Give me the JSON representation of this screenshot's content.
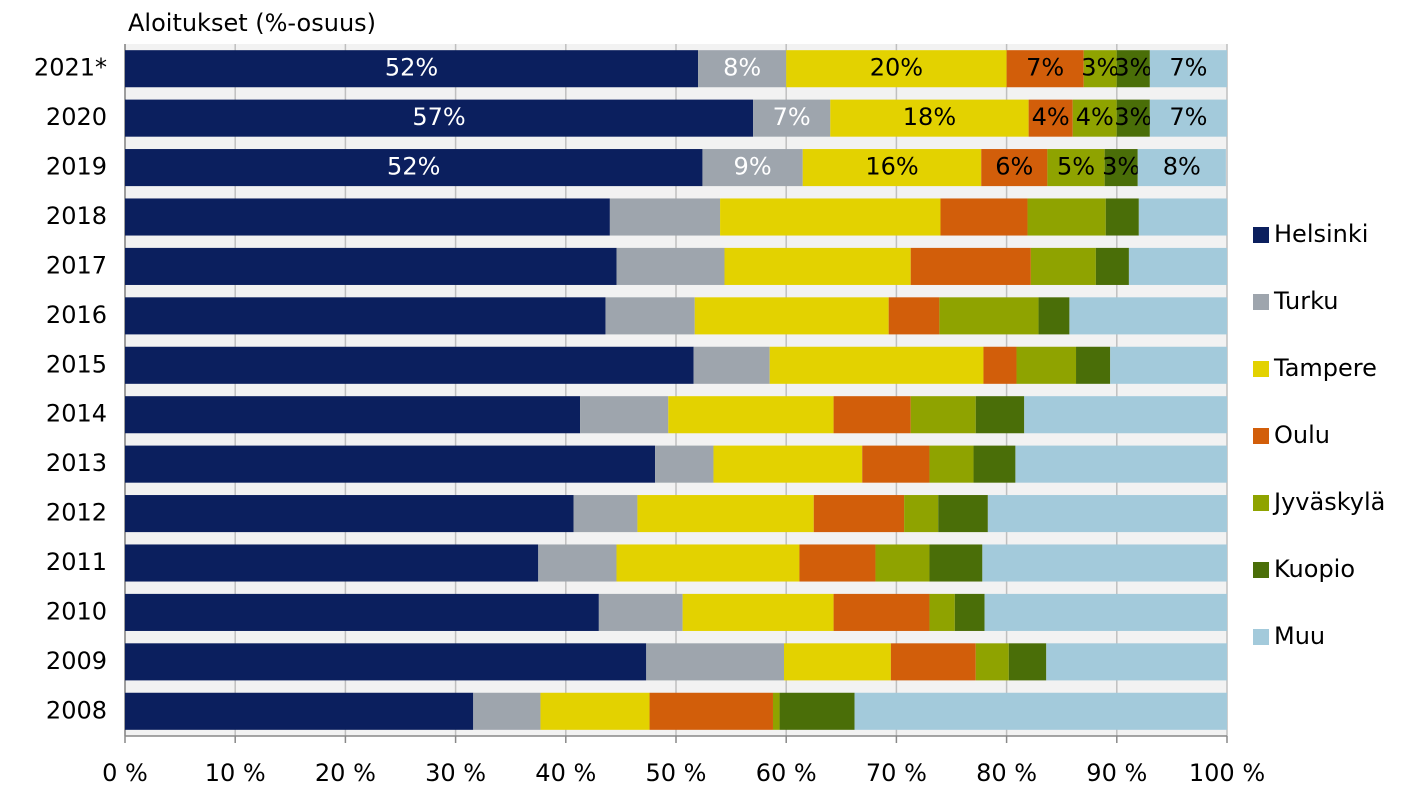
{
  "chart_data": {
    "type": "stacked_bar_horizontal",
    "title": "Aloitukset (%-osuus)",
    "categories": [
      "2021*",
      "2020",
      "2019",
      "2018",
      "2017",
      "2016",
      "2015",
      "2014",
      "2013",
      "2012",
      "2011",
      "2010",
      "2009",
      "2008"
    ],
    "series": [
      {
        "name": "Helsinki",
        "color": "#0b1f5e",
        "values": [
          52,
          57,
          52.4,
          44.0,
          44.6,
          43.6,
          51.6,
          41.3,
          48.1,
          40.7,
          37.5,
          43.0,
          47.3,
          31.6
        ],
        "value_labels": [
          "52%",
          "57%",
          "52%",
          null,
          null,
          null,
          null,
          null,
          null,
          null,
          null,
          null,
          null,
          null
        ]
      },
      {
        "name": "Turku",
        "color": "#9ea5ad",
        "values": [
          8,
          7,
          9.1,
          10.0,
          9.8,
          8.1,
          6.9,
          8.0,
          5.3,
          5.8,
          7.1,
          7.6,
          12.5,
          6.1
        ],
        "value_labels": [
          "8%",
          "7%",
          "9%",
          null,
          null,
          null,
          null,
          null,
          null,
          null,
          null,
          null,
          null,
          null
        ]
      },
      {
        "name": "Tampere",
        "color": "#e3d200",
        "values": [
          20,
          18,
          16.2,
          20.0,
          16.9,
          17.6,
          19.4,
          15.0,
          13.5,
          16.0,
          16.6,
          13.7,
          9.7,
          9.9
        ],
        "value_labels": [
          "20%",
          "18%",
          "16%",
          null,
          null,
          null,
          null,
          null,
          null,
          null,
          null,
          null,
          null,
          null
        ]
      },
      {
        "name": "Oulu",
        "color": "#d25e0a",
        "values": [
          7,
          4,
          6.0,
          7.9,
          10.9,
          4.6,
          3.0,
          7.0,
          6.1,
          8.2,
          6.9,
          8.7,
          7.7,
          11.2
        ],
        "value_labels": [
          "7%",
          "4%",
          "6%",
          null,
          null,
          null,
          null,
          null,
          null,
          null,
          null,
          null,
          null,
          null
        ]
      },
      {
        "name": "Jyväskylä",
        "color": "#8fa300",
        "values": [
          3,
          4,
          5.2,
          7.1,
          5.9,
          9.0,
          5.4,
          5.9,
          4.0,
          3.1,
          4.9,
          2.3,
          3.0,
          0.6
        ],
        "value_labels": [
          "3%",
          "4%",
          "5%",
          null,
          null,
          null,
          null,
          null,
          null,
          null,
          null,
          null,
          null,
          null
        ]
      },
      {
        "name": "Kuopio",
        "color": "#4a6e08",
        "values": [
          3,
          3,
          3.0,
          3.0,
          3.0,
          2.8,
          3.1,
          4.4,
          3.8,
          4.5,
          4.8,
          2.7,
          3.4,
          6.8
        ],
        "value_labels": [
          "3%",
          "3%",
          "3%",
          null,
          null,
          null,
          null,
          null,
          null,
          null,
          null,
          null,
          null,
          null
        ]
      },
      {
        "name": "Muu",
        "color": "#a3cadb",
        "values": [
          7,
          7,
          8.0,
          8.0,
          8.9,
          14.3,
          10.6,
          18.4,
          19.2,
          21.7,
          22.2,
          22.0,
          16.4,
          33.8
        ],
        "value_labels": [
          "7%",
          "7%",
          "8%",
          null,
          null,
          null,
          null,
          null,
          null,
          null,
          null,
          null,
          null,
          null
        ]
      }
    ],
    "xlim": [
      0,
      100
    ],
    "xticks": [
      {
        "value": 0,
        "label": "0 %"
      },
      {
        "value": 10,
        "label": "10 %"
      },
      {
        "value": 20,
        "label": "20 %"
      },
      {
        "value": 30,
        "label": "30 %"
      },
      {
        "value": 40,
        "label": "40 %"
      },
      {
        "value": 50,
        "label": "50 %"
      },
      {
        "value": 60,
        "label": "60 %"
      },
      {
        "value": 70,
        "label": "70 %"
      },
      {
        "value": 80,
        "label": "80 %"
      },
      {
        "value": 90,
        "label": "90 %"
      },
      {
        "value": 100,
        "label": "100 %"
      }
    ],
    "grid": true,
    "legend": "right"
  }
}
